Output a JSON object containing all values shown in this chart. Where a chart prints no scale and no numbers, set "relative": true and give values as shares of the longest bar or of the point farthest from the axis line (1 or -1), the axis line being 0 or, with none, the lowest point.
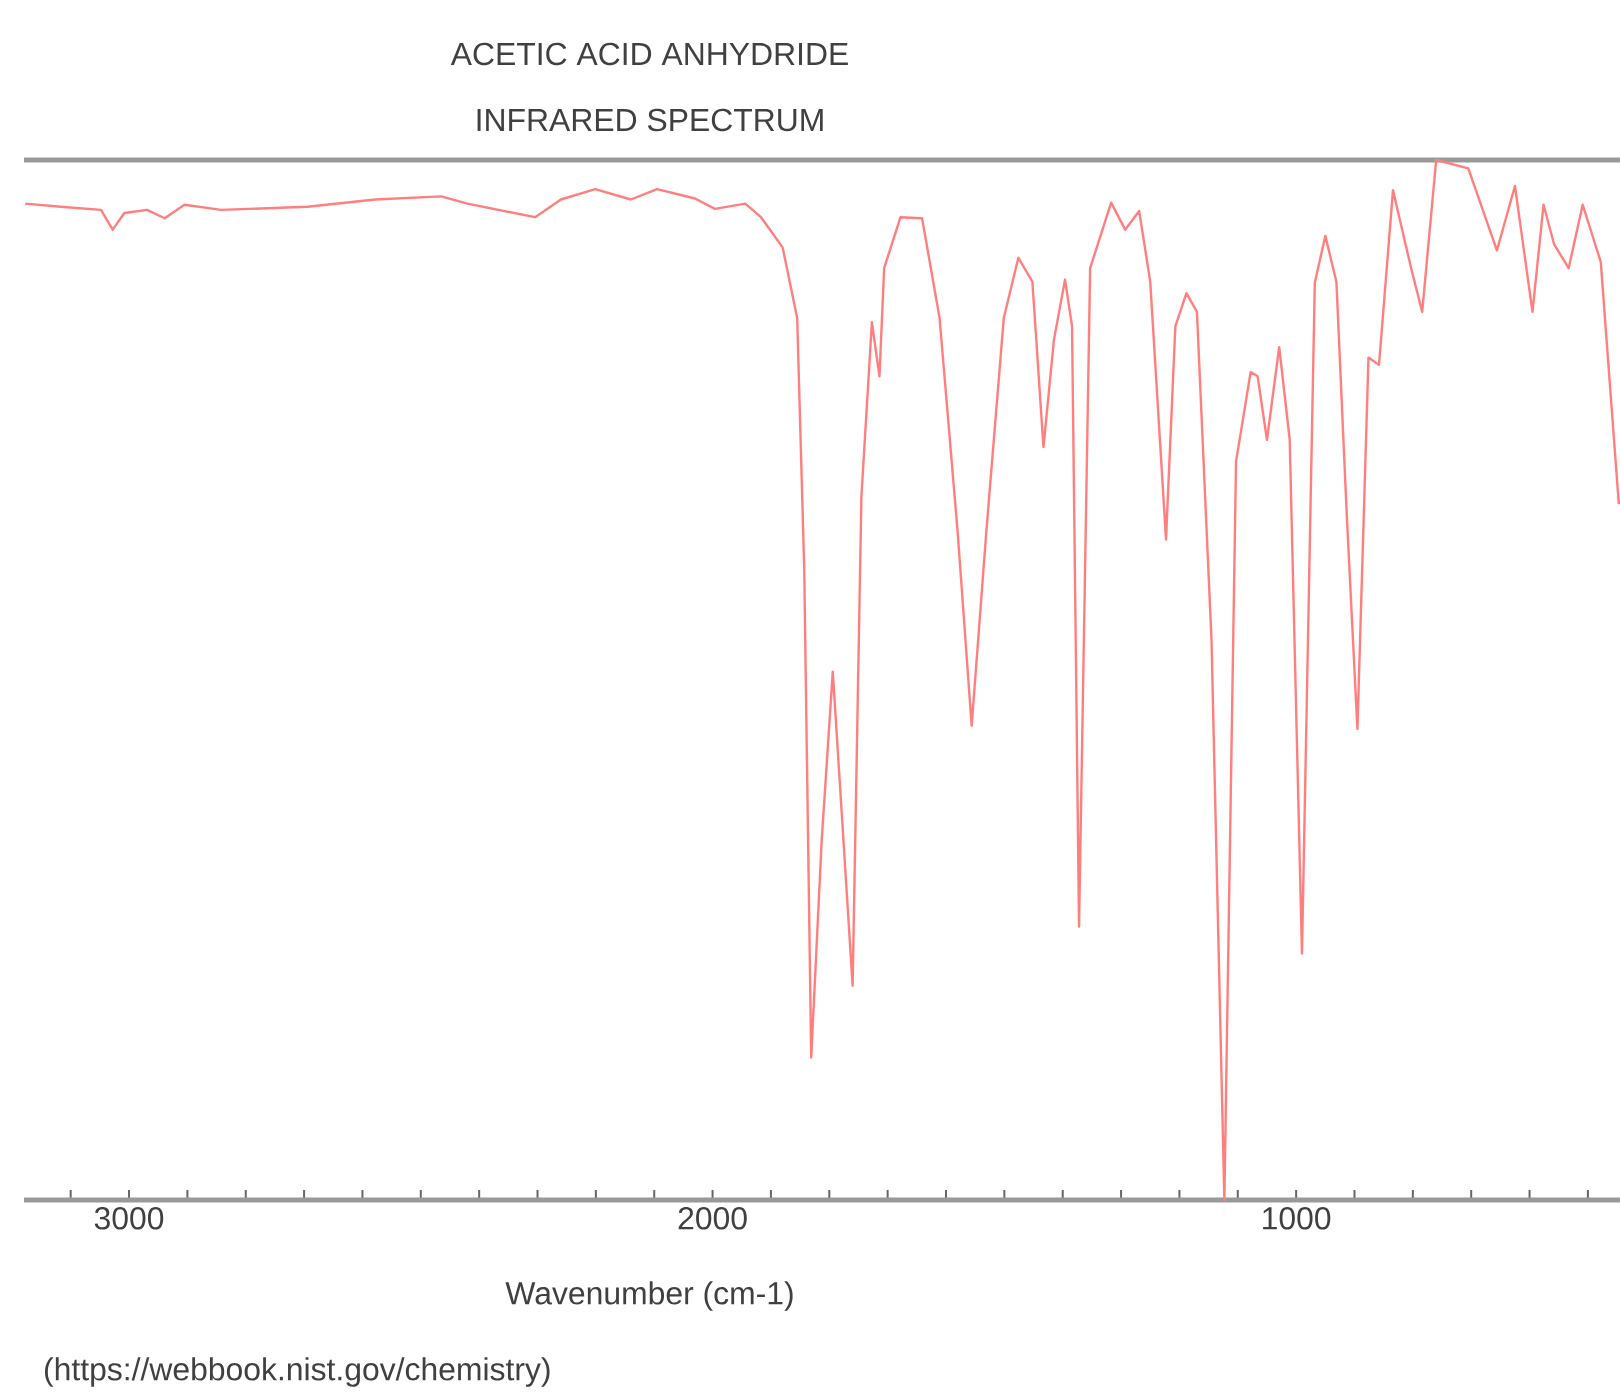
{
  "chart_data": {
    "type": "line",
    "title": "ACETIC ACID ANHYDRIDE",
    "subtitle": "INFRARED SPECTRUM",
    "xlabel": "Wavenumber (cm-1)",
    "annotations": [
      "(https://webbook.nist.gov/chemistry)"
    ],
    "relative": true,
    "color": "#ff7f7f",
    "xlim": [
      3180,
      445
    ],
    "xticks": [
      {
        "value": 3100,
        "label": null
      },
      3000,
      {
        "value": 2900,
        "label": null
      },
      {
        "value": 2800,
        "label": null
      },
      {
        "value": 2700,
        "label": null
      },
      {
        "value": 2600,
        "label": null
      },
      {
        "value": 2500,
        "label": null
      },
      {
        "value": 2400,
        "label": null
      },
      {
        "value": 2300,
        "label": null
      },
      {
        "value": 2200,
        "label": null
      },
      {
        "value": 2100,
        "label": null
      },
      2000,
      {
        "value": 1900,
        "label": null
      },
      {
        "value": 1800,
        "label": null
      },
      {
        "value": 1700,
        "label": null
      },
      {
        "value": 1600,
        "label": null
      },
      {
        "value": 1500,
        "label": null
      },
      {
        "value": 1400,
        "label": null
      },
      {
        "value": 1300,
        "label": null
      },
      {
        "value": 1200,
        "label": null
      },
      {
        "value": 1100,
        "label": null
      },
      1000,
      {
        "value": 900,
        "label": null
      },
      {
        "value": 800,
        "label": null
      },
      {
        "value": 700,
        "label": null
      },
      {
        "value": 600,
        "label": null
      },
      {
        "value": 500,
        "label": null
      }
    ],
    "x": [
      3178,
      3117,
      3048,
      3028,
      3008,
      2969,
      2939,
      2905,
      2842,
      2694,
      2578,
      2465,
      2420,
      2304,
      2260,
      2201,
      2140,
      2095,
      2030,
      1996,
      1944,
      1917,
      1880,
      1855,
      1843,
      1831,
      1813,
      1794,
      1760,
      1745,
      1727,
      1714,
      1706,
      1678,
      1641,
      1611,
      1580,
      1556,
      1531,
      1501,
      1476,
      1452,
      1433,
      1415,
      1396,
      1384,
      1372,
      1353,
      1317,
      1293,
      1269,
      1250,
      1223,
      1207,
      1188,
      1170,
      1145,
      1123,
      1103,
      1078,
      1066,
      1050,
      1029,
      1011,
      990,
      968,
      950,
      931,
      913,
      895,
      876,
      858,
      834,
      803,
      784,
      760,
      705,
      656,
      625,
      595,
      576,
      558,
      533,
      509,
      478,
      447
    ],
    "values": [
      0.958,
      0.955,
      0.952,
      0.933,
      0.949,
      0.952,
      0.944,
      0.957,
      0.952,
      0.955,
      0.962,
      0.965,
      0.958,
      0.945,
      0.962,
      0.972,
      0.962,
      0.972,
      0.963,
      0.953,
      0.958,
      0.945,
      0.916,
      0.848,
      0.608,
      0.137,
      0.346,
      0.508,
      0.206,
      0.676,
      0.844,
      0.792,
      0.896,
      0.945,
      0.944,
      0.848,
      0.642,
      0.456,
      0.642,
      0.848,
      0.906,
      0.883,
      0.724,
      0.827,
      0.885,
      0.84,
      0.263,
      0.896,
      0.959,
      0.933,
      0.951,
      0.883,
      0.635,
      0.84,
      0.872,
      0.854,
      0.538,
      0,
      0.71,
      0.796,
      0.792,
      0.731,
      0.82,
      0.731,
      0.237,
      0.882,
      0.927,
      0.883,
      0.656,
      0.453,
      0.81,
      0.803,
      0.971,
      0.896,
      0.854,
      1,
      0.992,
      0.913,
      0.975,
      0.854,
      0.957,
      0.919,
      0.896,
      0.957,
      0.902,
      0.669
    ]
  }
}
